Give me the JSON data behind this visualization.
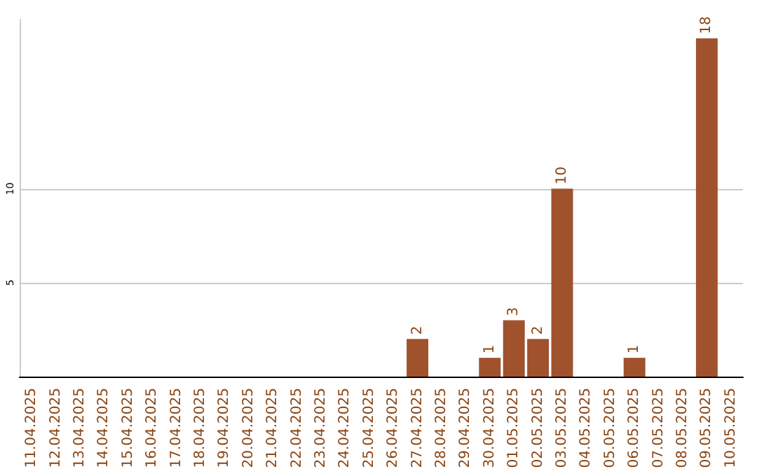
{
  "chart_data": {
    "type": "bar",
    "categories": [
      "11.04.2025",
      "12.04.2025",
      "13.04.2025",
      "14.04.2025",
      "15.04.2025",
      "16.04.2025",
      "17.04.2025",
      "18.04.2025",
      "19.04.2025",
      "20.04.2025",
      "21.04.2025",
      "22.04.2025",
      "23.04.2025",
      "24.04.2025",
      "25.04.2025",
      "26.04.2025",
      "27.04.2025",
      "28.04.2025",
      "29.04.2025",
      "30.04.2025",
      "01.05.2025",
      "02.05.2025",
      "03.05.2025",
      "04.05.2025",
      "05.05.2025",
      "06.05.2025",
      "07.05.2025",
      "08.05.2025",
      "09.05.2025",
      "10.05.2025"
    ],
    "values": [
      0,
      0,
      0,
      0,
      0,
      0,
      0,
      0,
      0,
      0,
      0,
      0,
      0,
      0,
      0,
      0,
      2,
      0,
      0,
      1,
      3,
      2,
      10,
      0,
      0,
      1,
      0,
      0,
      18,
      0
    ],
    "value_labels": [
      null,
      null,
      null,
      null,
      null,
      null,
      null,
      null,
      null,
      null,
      null,
      null,
      null,
      null,
      null,
      null,
      "2",
      null,
      null,
      "1",
      "3",
      "2",
      "10",
      null,
      null,
      "1",
      null,
      null,
      "18",
      null
    ],
    "color": "#a0522d",
    "ylim": [
      0,
      19
    ],
    "yticks": [
      5,
      10
    ],
    "grid": "y"
  }
}
